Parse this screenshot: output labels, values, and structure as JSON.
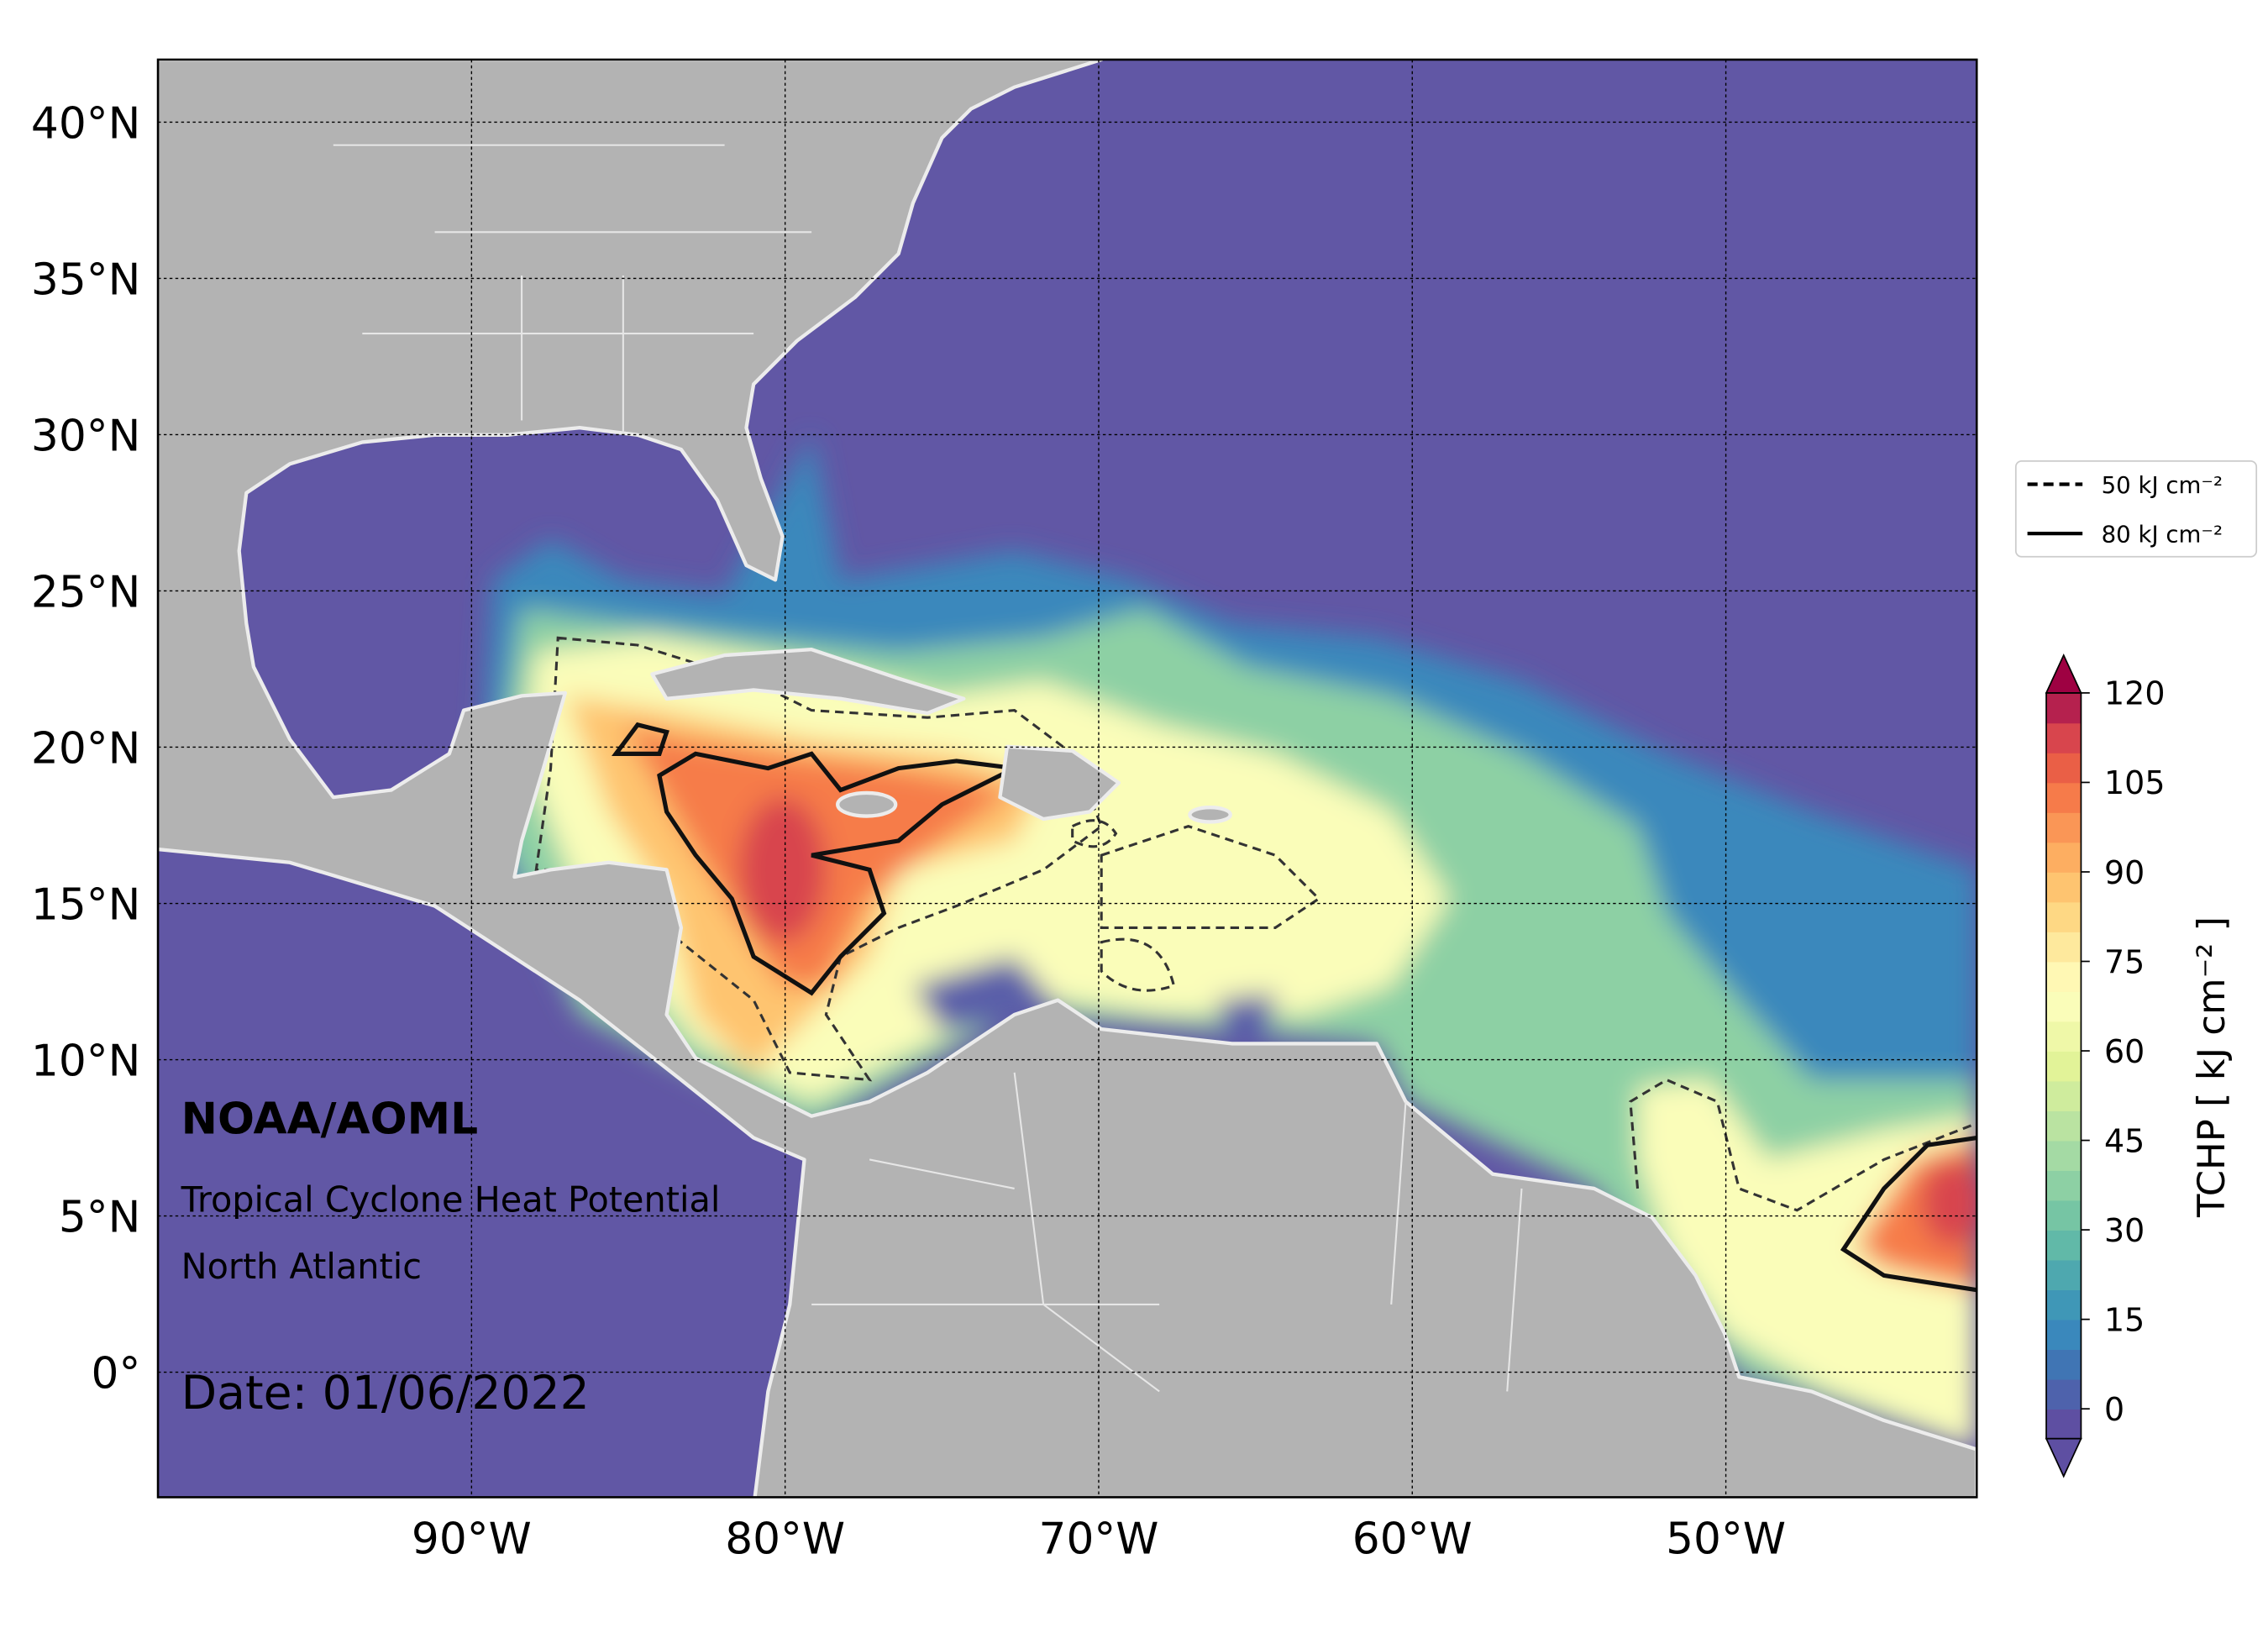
{
  "map": {
    "annotations": {
      "agency": "NOAA/AOML",
      "product": "Tropical Cyclone Heat Potential",
      "region": "North Atlantic",
      "date": "Date: 01/06/2022"
    },
    "xlim": [
      -100,
      -42
    ],
    "ylim": [
      -4,
      42
    ],
    "xticks": [
      {
        "value": -90,
        "label": "90°W"
      },
      {
        "value": -80,
        "label": "80°W"
      },
      {
        "value": -70,
        "label": "70°W"
      },
      {
        "value": -60,
        "label": "60°W"
      },
      {
        "value": -50,
        "label": "50°W"
      }
    ],
    "yticks": [
      {
        "value": 0,
        "label": "0°"
      },
      {
        "value": 5,
        "label": "5°N"
      },
      {
        "value": 10,
        "label": "10°N"
      },
      {
        "value": 15,
        "label": "15°N"
      },
      {
        "value": 20,
        "label": "20°N"
      },
      {
        "value": 25,
        "label": "25°N"
      },
      {
        "value": 30,
        "label": "30°N"
      },
      {
        "value": 35,
        "label": "35°N"
      },
      {
        "value": 40,
        "label": "40°N"
      }
    ],
    "grid": true,
    "legend": [
      {
        "label": "50 kJ cm⁻²",
        "style": "dashed"
      },
      {
        "label": "80 kJ cm⁻²",
        "style": "solid"
      }
    ],
    "colorbar": {
      "label": "TCHP [ kJ cm⁻² ]",
      "lim": [
        -5,
        120
      ],
      "ticks": [
        0,
        15,
        30,
        45,
        60,
        75,
        90,
        105,
        120
      ],
      "colors": [
        "#5e4fa2",
        "#4e62ac",
        "#4075b4",
        "#3a88bc",
        "#3f97b7",
        "#4ea8af",
        "#61b9a8",
        "#76c5a4",
        "#8dd0a4",
        "#a4daa4",
        "#bae3a1",
        "#cfec9d",
        "#e2f398",
        "#eff8a8",
        "#fafdb9",
        "#fff8b4",
        "#fee99d",
        "#fed884",
        "#fec470",
        "#fdae61",
        "#fa9656",
        "#f67b4a",
        "#ea5f46",
        "#d8454d",
        "#b5214e"
      ],
      "under_color": "#5e4fa2",
      "over_color": "#9e0142"
    }
  }
}
